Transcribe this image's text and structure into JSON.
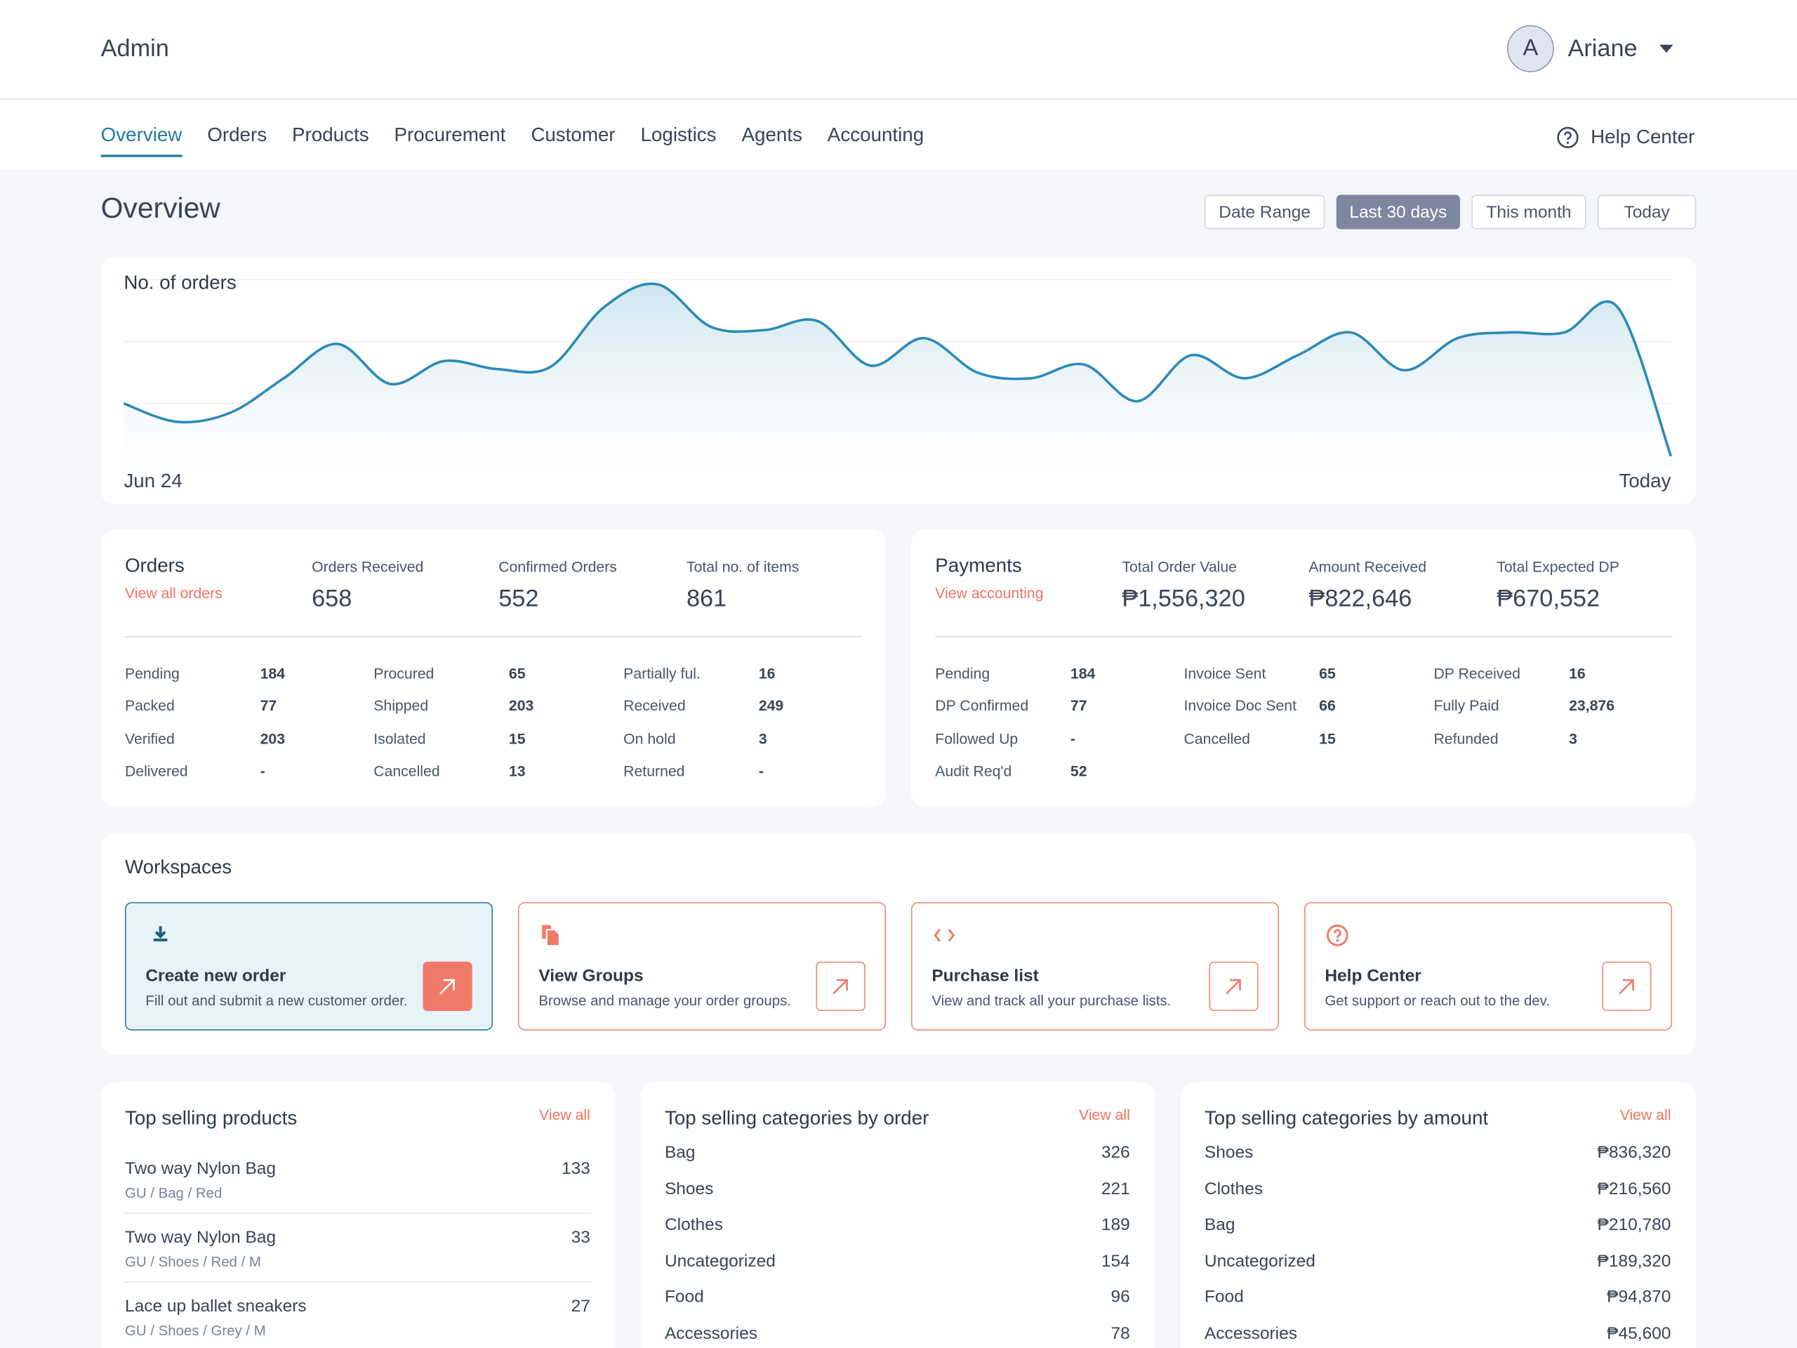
{
  "header": {
    "title": "Admin",
    "user_initial": "A",
    "user_name": "Ariane"
  },
  "nav": {
    "items": [
      "Overview",
      "Orders",
      "Products",
      "Procurement",
      "Customer",
      "Logistics",
      "Agents",
      "Accounting"
    ],
    "active": 0,
    "help": "Help Center"
  },
  "overview": {
    "title": "Overview",
    "filters": [
      "Date Range",
      "Last 30 days",
      "This month",
      "Today"
    ],
    "active_filter": 1
  },
  "chart_data": {
    "type": "area",
    "title": "No. of orders",
    "categories": [
      "Jun 24",
      null,
      null,
      null,
      null,
      null,
      null,
      null,
      null,
      null,
      null,
      null,
      null,
      null,
      null,
      null,
      null,
      null,
      null,
      null,
      null,
      null,
      null,
      null,
      null,
      null,
      null,
      null,
      null,
      "Today"
    ],
    "values": [
      54,
      38,
      46,
      76,
      106,
      71,
      91,
      84,
      86,
      138,
      158,
      121,
      118,
      126,
      87,
      111,
      81,
      76,
      88,
      56,
      96,
      76,
      96,
      116,
      83,
      111,
      116,
      116,
      138,
      8
    ],
    "color": "#2b8ab8",
    "ylim": [
      0,
      162
    ],
    "yticks": [
      0,
      54,
      108,
      162
    ],
    "grid": true
  },
  "orders": {
    "title": "Orders",
    "link": "View all orders",
    "stats": [
      {
        "label": "Orders Received",
        "value": 658
      },
      {
        "label": "Confirmed Orders",
        "value": 552
      },
      {
        "label": "Total no. of items",
        "value": 861
      }
    ],
    "details": [
      [
        {
          "label": "Pending",
          "value": 184
        },
        {
          "label": "Packed",
          "value": 77
        },
        {
          "label": "Verified",
          "value": 203
        },
        {
          "label": "Delivered",
          "value": "-"
        }
      ],
      [
        {
          "label": "Procured",
          "value": 65
        },
        {
          "label": "Shipped",
          "value": 203
        },
        {
          "label": "Isolated",
          "value": 15
        },
        {
          "label": "Cancelled",
          "value": 13
        }
      ],
      [
        {
          "label": "Partially ful.",
          "value": 16
        },
        {
          "label": "Received",
          "value": 249
        },
        {
          "label": "On hold",
          "value": 3
        },
        {
          "label": "Returned",
          "value": "-"
        }
      ]
    ]
  },
  "payments": {
    "title": "Payments",
    "link": "View accounting",
    "stats": [
      {
        "label": "Total Order Value",
        "value": "₱1,556,320"
      },
      {
        "label": "Amount Received",
        "value": "₱822,646"
      },
      {
        "label": "Total Expected DP",
        "value": "₱670,552"
      }
    ],
    "details": [
      [
        {
          "label": "Pending",
          "value": 184
        },
        {
          "label": "DP Confirmed",
          "value": 77
        },
        {
          "label": "Followed Up",
          "value": "-"
        },
        {
          "label": "Audit Req'd",
          "value": 52
        }
      ],
      [
        {
          "label": "Invoice Sent",
          "value": 65
        },
        {
          "label": "Invoice Doc  Sent",
          "value": 66
        },
        {
          "label": "Cancelled",
          "value": 15
        }
      ],
      [
        {
          "label": "DP Received",
          "value": 16
        },
        {
          "label": "Fully Paid",
          "value": "23,876"
        },
        {
          "label": "Refunded",
          "value": 3
        }
      ]
    ]
  },
  "workspaces": {
    "title": "Workspaces",
    "cards": [
      {
        "title": "Create new order",
        "description": "Fill out and submit a new customer order."
      },
      {
        "title": "View Groups",
        "description": "Browse and manage your order groups."
      },
      {
        "title": "Purchase list",
        "description": "View and track all your purchase lists."
      },
      {
        "title": "Help Center",
        "description": "Get support or reach out to the dev."
      }
    ]
  },
  "top_products": {
    "title": "Top selling products",
    "link": "View all",
    "items": [
      {
        "name": "Two way Nylon Bag",
        "path": "GU / Bag / Red",
        "value": 133
      },
      {
        "name": "Two way Nylon Bag",
        "path": "GU / Shoes / Red / M",
        "value": 33
      },
      {
        "name": "Lace up ballet sneakers",
        "path": "GU / Shoes / Grey / M",
        "value": 27
      }
    ]
  },
  "top_categories_order": {
    "title": "Top selling categories by order",
    "link": "View all",
    "items": [
      {
        "name": "Bag",
        "value": 326
      },
      {
        "name": "Shoes",
        "value": 221
      },
      {
        "name": "Clothes",
        "value": 189
      },
      {
        "name": "Uncategorized",
        "value": 154
      },
      {
        "name": "Food",
        "value": 96
      },
      {
        "name": "Accessories",
        "value": 78
      }
    ]
  },
  "top_categories_amount": {
    "title": "Top selling categories by amount",
    "link": "View all",
    "items": [
      {
        "name": "Shoes",
        "value": "₱836,320"
      },
      {
        "name": "Clothes",
        "value": "₱216,560"
      },
      {
        "name": "Bag",
        "value": "₱210,780"
      },
      {
        "name": "Uncategorized",
        "value": "₱189,320"
      },
      {
        "name": "Food",
        "value": "₱94,870"
      },
      {
        "name": "Accessories",
        "value": "₱45,600"
      }
    ]
  }
}
